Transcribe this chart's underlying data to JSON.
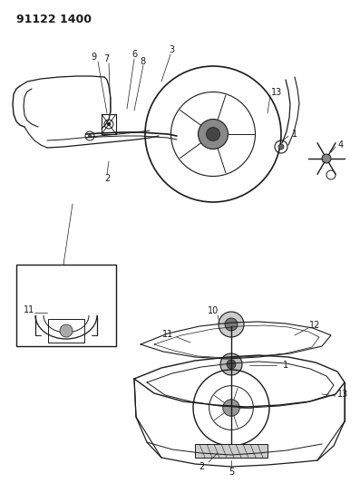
{
  "title": "91122 1400",
  "bg": "#ffffff",
  "lc": "#1a1a1a",
  "fig_w": 3.97,
  "fig_h": 5.33,
  "dpi": 100
}
